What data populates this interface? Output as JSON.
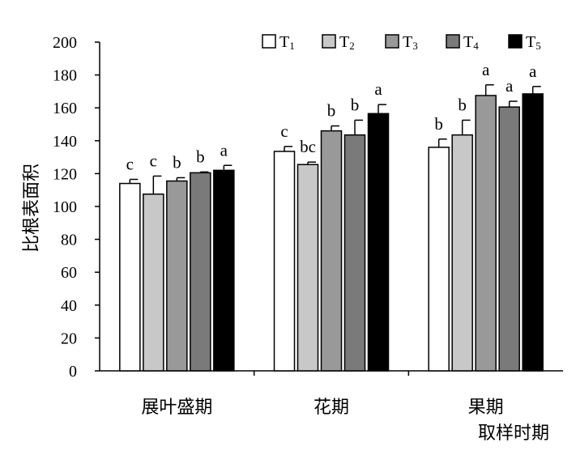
{
  "chart_data": {
    "type": "bar",
    "title": "",
    "xlabel": "取样时期",
    "ylabel": "比根表面积",
    "ylim": [
      0,
      200
    ],
    "yticks": [
      0,
      20,
      40,
      60,
      80,
      100,
      120,
      140,
      160,
      180,
      200
    ],
    "categories": [
      "展叶盛期",
      "花期",
      "果期"
    ],
    "legend_position": "top-right",
    "grid": false,
    "series": [
      {
        "name": "T",
        "sub": "1",
        "color": "#ffffff",
        "values": [
          114,
          133.5,
          136
        ],
        "errors": [
          2.5,
          3,
          5
        ],
        "labels": [
          "c",
          "c",
          "b"
        ]
      },
      {
        "name": "T",
        "sub": "2",
        "color": "#c8c8c8",
        "values": [
          107.5,
          125.5,
          143.5
        ],
        "errors": [
          11,
          1.5,
          9
        ],
        "labels": [
          "c",
          "bc",
          "b"
        ]
      },
      {
        "name": "T",
        "sub": "3",
        "color": "#999999",
        "values": [
          115.5,
          146,
          167.5
        ],
        "errors": [
          2,
          3,
          6.5
        ],
        "labels": [
          "b",
          "b",
          "a"
        ]
      },
      {
        "name": "T",
        "sub": "4",
        "color": "#7a7a7a",
        "values": [
          120.5,
          143.5,
          160.5
        ],
        "errors": [
          0.5,
          9,
          3.5
        ],
        "labels": [
          "b",
          "b",
          "a"
        ]
      },
      {
        "name": "T",
        "sub": "5",
        "color": "#000000",
        "values": [
          122,
          156.5,
          168.5
        ],
        "errors": [
          3,
          5.5,
          4.5
        ],
        "labels": [
          "a",
          "a",
          "a"
        ]
      }
    ]
  }
}
